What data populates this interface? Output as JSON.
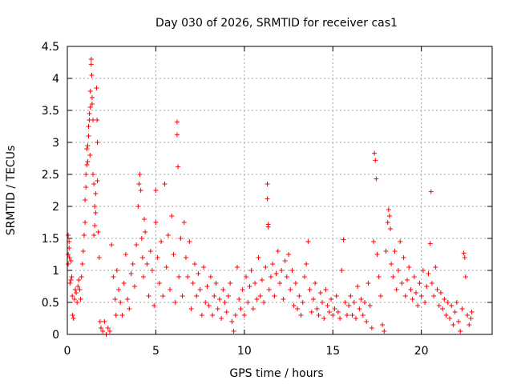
{
  "chart_data": {
    "type": "scatter",
    "title": "Day 030 of 2026, SRMTID for receiver cas1",
    "xlabel": "GPS time / hours",
    "ylabel": "SRMTID / TECUs",
    "xlim": [
      0,
      24
    ],
    "ylim": [
      0,
      4.5
    ],
    "xticks": [
      0,
      5,
      10,
      15,
      20
    ],
    "xtick_labels": [
      "0",
      "5",
      "10",
      "15",
      "20"
    ],
    "yticks": [
      0,
      0.5,
      1,
      1.5,
      2,
      2.5,
      3,
      3.5,
      4,
      4.5
    ],
    "ytick_labels": [
      "0",
      "0.5",
      "1",
      "1.5",
      "2",
      "2.5",
      "3",
      "3.5",
      "4",
      "4.5"
    ],
    "grid": true,
    "marker": "+",
    "series": [
      {
        "name": "cas1",
        "color": "#ff0000",
        "points": [
          [
            0.05,
            1.55
          ],
          [
            0.05,
            1.25
          ],
          [
            0.05,
            1.1
          ],
          [
            0.1,
            1.45
          ],
          [
            0.1,
            1.35
          ],
          [
            0.12,
            1.2
          ],
          [
            0.15,
            0.8
          ],
          [
            0.2,
            0.85
          ],
          [
            0.2,
            1.15
          ],
          [
            0.25,
            0.9
          ],
          [
            0.28,
            0.6
          ],
          [
            0.3,
            0.3
          ],
          [
            0.35,
            0.25
          ],
          [
            0.4,
            0.55
          ],
          [
            0.45,
            0.7
          ],
          [
            0.5,
            0.65
          ],
          [
            0.55,
            0.5
          ],
          [
            0.6,
            0.75
          ],
          [
            0.65,
            0.85
          ],
          [
            0.7,
            0.7
          ],
          [
            0.75,
            0.55
          ],
          [
            0.8,
            0.9
          ],
          [
            0.85,
            1.1
          ],
          [
            0.9,
            1.3
          ],
          [
            0.95,
            1.55
          ],
          [
            1.0,
            1.75
          ],
          [
            1.0,
            2.1
          ],
          [
            1.05,
            2.3
          ],
          [
            1.05,
            2.5
          ],
          [
            1.1,
            2.65
          ],
          [
            1.1,
            2.9
          ],
          [
            1.15,
            2.95
          ],
          [
            1.15,
            2.7
          ],
          [
            1.2,
            3.1
          ],
          [
            1.2,
            3.25
          ],
          [
            1.25,
            3.45
          ],
          [
            1.25,
            3.35
          ],
          [
            1.28,
            2.8
          ],
          [
            1.3,
            3.55
          ],
          [
            1.3,
            3.8
          ],
          [
            1.35,
            4.3
          ],
          [
            1.35,
            4.22
          ],
          [
            1.38,
            4.05
          ],
          [
            1.4,
            3.7
          ],
          [
            1.4,
            3.6
          ],
          [
            1.45,
            3.35
          ],
          [
            1.45,
            2.5
          ],
          [
            1.5,
            2.35
          ],
          [
            1.5,
            1.55
          ],
          [
            1.55,
            1.7
          ],
          [
            1.55,
            2.0
          ],
          [
            1.6,
            2.2
          ],
          [
            1.6,
            1.9
          ],
          [
            1.65,
            3.85
          ],
          [
            1.68,
            3.35
          ],
          [
            1.7,
            3.0
          ],
          [
            1.7,
            2.4
          ],
          [
            1.75,
            1.6
          ],
          [
            1.8,
            1.2
          ],
          [
            1.85,
            0.2
          ],
          [
            1.9,
            0.1
          ],
          [
            2.0,
            0.05
          ],
          [
            2.1,
            0.2
          ],
          [
            2.2,
            0.0
          ],
          [
            2.3,
            0.1
          ],
          [
            2.4,
            0.05
          ],
          [
            2.5,
            1.4
          ],
          [
            2.6,
            0.9
          ],
          [
            2.7,
            0.55
          ],
          [
            2.75,
            0.3
          ],
          [
            2.8,
            1.0
          ],
          [
            2.9,
            0.7
          ],
          [
            3.0,
            0.5
          ],
          [
            3.1,
            0.3
          ],
          [
            3.2,
            0.8
          ],
          [
            3.3,
            1.25
          ],
          [
            3.4,
            0.55
          ],
          [
            3.5,
            0.4
          ],
          [
            3.6,
            0.95
          ],
          [
            3.7,
            1.1
          ],
          [
            3.8,
            0.75
          ],
          [
            3.9,
            1.4
          ],
          [
            4.0,
            2.0
          ],
          [
            4.05,
            2.35
          ],
          [
            4.1,
            2.5
          ],
          [
            4.15,
            2.25
          ],
          [
            4.2,
            1.5
          ],
          [
            4.25,
            1.2
          ],
          [
            4.3,
            0.9
          ],
          [
            4.35,
            1.8
          ],
          [
            4.4,
            1.6
          ],
          [
            4.5,
            1.1
          ],
          [
            4.6,
            0.6
          ],
          [
            4.7,
            1.3
          ],
          [
            4.8,
            1.0
          ],
          [
            4.9,
            0.45
          ],
          [
            5.0,
            2.25
          ],
          [
            5.0,
            1.75
          ],
          [
            5.1,
            1.2
          ],
          [
            5.2,
            0.8
          ],
          [
            5.3,
            1.45
          ],
          [
            5.4,
            0.6
          ],
          [
            5.5,
            2.35
          ],
          [
            5.6,
            1.05
          ],
          [
            5.7,
            1.55
          ],
          [
            5.8,
            0.7
          ],
          [
            5.9,
            1.85
          ],
          [
            6.0,
            1.25
          ],
          [
            6.1,
            0.5
          ],
          [
            6.2,
            3.32
          ],
          [
            6.2,
            3.12
          ],
          [
            6.25,
            2.62
          ],
          [
            6.3,
            0.9
          ],
          [
            6.4,
            1.5
          ],
          [
            6.5,
            0.6
          ],
          [
            6.6,
            1.75
          ],
          [
            6.7,
            1.2
          ],
          [
            6.8,
            0.9
          ],
          [
            6.9,
            1.45
          ],
          [
            7.0,
            0.4
          ],
          [
            7.1,
            0.8
          ],
          [
            7.2,
            1.1
          ],
          [
            7.3,
            0.6
          ],
          [
            7.4,
            0.95
          ],
          [
            7.5,
            0.7
          ],
          [
            7.6,
            0.3
          ],
          [
            7.7,
            1.05
          ],
          [
            7.8,
            0.5
          ],
          [
            7.9,
            0.75
          ],
          [
            8.0,
            0.45
          ],
          [
            8.1,
            0.9
          ],
          [
            8.2,
            0.3
          ],
          [
            8.3,
            0.6
          ],
          [
            8.4,
            0.8
          ],
          [
            8.5,
            0.4
          ],
          [
            8.6,
            0.55
          ],
          [
            8.7,
            0.25
          ],
          [
            8.8,
            0.7
          ],
          [
            8.9,
            0.5
          ],
          [
            9.0,
            0.35
          ],
          [
            9.1,
            0.6
          ],
          [
            9.2,
            0.8
          ],
          [
            9.3,
            0.2
          ],
          [
            9.4,
            0.05
          ],
          [
            9.5,
            0.3
          ],
          [
            9.6,
            1.05
          ],
          [
            9.7,
            0.55
          ],
          [
            9.8,
            0.4
          ],
          [
            9.9,
            0.7
          ],
          [
            10.0,
            0.3
          ],
          [
            10.1,
            0.9
          ],
          [
            10.2,
            0.5
          ],
          [
            10.3,
            0.75
          ],
          [
            10.4,
            1.0
          ],
          [
            10.5,
            0.4
          ],
          [
            10.6,
            0.8
          ],
          [
            10.7,
            0.55
          ],
          [
            10.8,
            1.2
          ],
          [
            10.9,
            0.6
          ],
          [
            11.0,
            0.85
          ],
          [
            11.1,
            0.5
          ],
          [
            11.2,
            1.05
          ],
          [
            11.3,
            2.35
          ],
          [
            11.3,
            2.12
          ],
          [
            11.35,
            1.72
          ],
          [
            11.35,
            1.68
          ],
          [
            11.4,
            0.7
          ],
          [
            11.5,
            0.9
          ],
          [
            11.6,
            1.1
          ],
          [
            11.7,
            0.6
          ],
          [
            11.8,
            0.95
          ],
          [
            11.9,
            1.3
          ],
          [
            12.0,
            0.8
          ],
          [
            12.1,
            1.0
          ],
          [
            12.2,
            0.55
          ],
          [
            12.3,
            1.15
          ],
          [
            12.4,
            0.9
          ],
          [
            12.5,
            1.25
          ],
          [
            12.6,
            0.7
          ],
          [
            12.7,
            1.0
          ],
          [
            12.8,
            0.45
          ],
          [
            12.9,
            0.8
          ],
          [
            13.0,
            0.4
          ],
          [
            13.1,
            0.6
          ],
          [
            13.2,
            0.3
          ],
          [
            13.3,
            0.5
          ],
          [
            13.4,
            0.9
          ],
          [
            13.5,
            1.1
          ],
          [
            13.6,
            1.45
          ],
          [
            13.7,
            0.7
          ],
          [
            13.8,
            0.35
          ],
          [
            13.9,
            0.55
          ],
          [
            14.0,
            0.8
          ],
          [
            14.1,
            0.4
          ],
          [
            14.2,
            0.3
          ],
          [
            14.3,
            0.65
          ],
          [
            14.4,
            0.5
          ],
          [
            14.5,
            0.25
          ],
          [
            14.6,
            0.7
          ],
          [
            14.7,
            0.45
          ],
          [
            14.8,
            0.35
          ],
          [
            14.9,
            0.55
          ],
          [
            15.0,
            0.3
          ],
          [
            15.1,
            0.4
          ],
          [
            15.2,
            0.6
          ],
          [
            15.3,
            0.35
          ],
          [
            15.4,
            0.25
          ],
          [
            15.5,
            1.0
          ],
          [
            15.6,
            1.48
          ],
          [
            15.7,
            0.5
          ],
          [
            15.8,
            0.3
          ],
          [
            15.9,
            0.45
          ],
          [
            16.0,
            0.6
          ],
          [
            16.1,
            0.3
          ],
          [
            16.2,
            0.5
          ],
          [
            16.3,
            0.25
          ],
          [
            16.4,
            0.75
          ],
          [
            16.5,
            0.4
          ],
          [
            16.6,
            0.55
          ],
          [
            16.7,
            0.3
          ],
          [
            16.8,
            0.5
          ],
          [
            16.9,
            0.2
          ],
          [
            17.0,
            0.8
          ],
          [
            17.1,
            0.45
          ],
          [
            17.2,
            0.1
          ],
          [
            17.3,
            1.45
          ],
          [
            17.35,
            2.83
          ],
          [
            17.4,
            2.72
          ],
          [
            17.45,
            2.43
          ],
          [
            17.5,
            1.25
          ],
          [
            17.6,
            0.9
          ],
          [
            17.7,
            0.6
          ],
          [
            17.8,
            0.15
          ],
          [
            17.9,
            0.05
          ],
          [
            18.0,
            1.3
          ],
          [
            18.1,
            1.75
          ],
          [
            18.15,
            1.95
          ],
          [
            18.2,
            1.85
          ],
          [
            18.25,
            1.65
          ],
          [
            18.3,
            1.1
          ],
          [
            18.4,
            0.9
          ],
          [
            18.5,
            1.3
          ],
          [
            18.6,
            0.7
          ],
          [
            18.7,
            1.0
          ],
          [
            18.8,
            1.45
          ],
          [
            18.9,
            0.8
          ],
          [
            19.0,
            1.2
          ],
          [
            19.1,
            0.6
          ],
          [
            19.2,
            0.85
          ],
          [
            19.3,
            1.05
          ],
          [
            19.4,
            0.7
          ],
          [
            19.5,
            0.55
          ],
          [
            19.6,
            0.9
          ],
          [
            19.7,
            0.65
          ],
          [
            19.8,
            0.45
          ],
          [
            19.9,
            0.8
          ],
          [
            20.0,
            0.6
          ],
          [
            20.1,
            1.0
          ],
          [
            20.2,
            0.5
          ],
          [
            20.3,
            0.75
          ],
          [
            20.4,
            0.95
          ],
          [
            20.5,
            1.42
          ],
          [
            20.55,
            2.23
          ],
          [
            20.6,
            0.8
          ],
          [
            20.7,
            0.6
          ],
          [
            20.8,
            1.05
          ],
          [
            20.9,
            0.7
          ],
          [
            21.0,
            0.45
          ],
          [
            21.1,
            0.65
          ],
          [
            21.2,
            0.4
          ],
          [
            21.3,
            0.55
          ],
          [
            21.4,
            0.3
          ],
          [
            21.5,
            0.5
          ],
          [
            21.6,
            0.25
          ],
          [
            21.7,
            0.45
          ],
          [
            21.8,
            0.15
          ],
          [
            21.9,
            0.35
          ],
          [
            22.0,
            0.5
          ],
          [
            22.1,
            0.2
          ],
          [
            22.2,
            0.05
          ],
          [
            22.3,
            0.4
          ],
          [
            22.4,
            1.27
          ],
          [
            22.45,
            1.2
          ],
          [
            22.5,
            0.9
          ],
          [
            22.6,
            0.3
          ],
          [
            22.7,
            0.15
          ],
          [
            22.8,
            0.25
          ],
          [
            22.85,
            0.35
          ]
        ]
      }
    ]
  }
}
